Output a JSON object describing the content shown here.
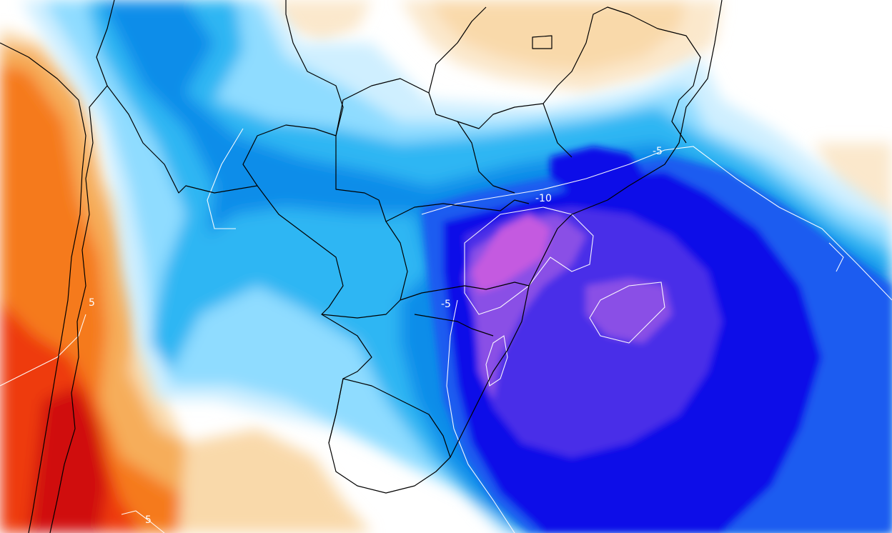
{
  "map": {
    "contour_labels": [
      "5",
      "5",
      "-5",
      "-10",
      "-5"
    ],
    "palette": {
      "deep_red": "#d01010",
      "red": "#ee3a10",
      "orange": "#f57a1a",
      "light_orange": "#f6ad5a",
      "pale_orange": "#f9d9aa",
      "cream": "#fbe8cc",
      "white": "#ffffff",
      "pale_blue": "#cfefff",
      "light_blue": "#8fdcff",
      "sky_blue": "#2fb6f3",
      "blue": "#0f8de9",
      "mid_blue": "#1e5cf0",
      "deep_blue": "#1010e8",
      "indigo": "#4a2fe8",
      "violet": "#8a4fe6",
      "magenta": "#c45ae0"
    }
  }
}
